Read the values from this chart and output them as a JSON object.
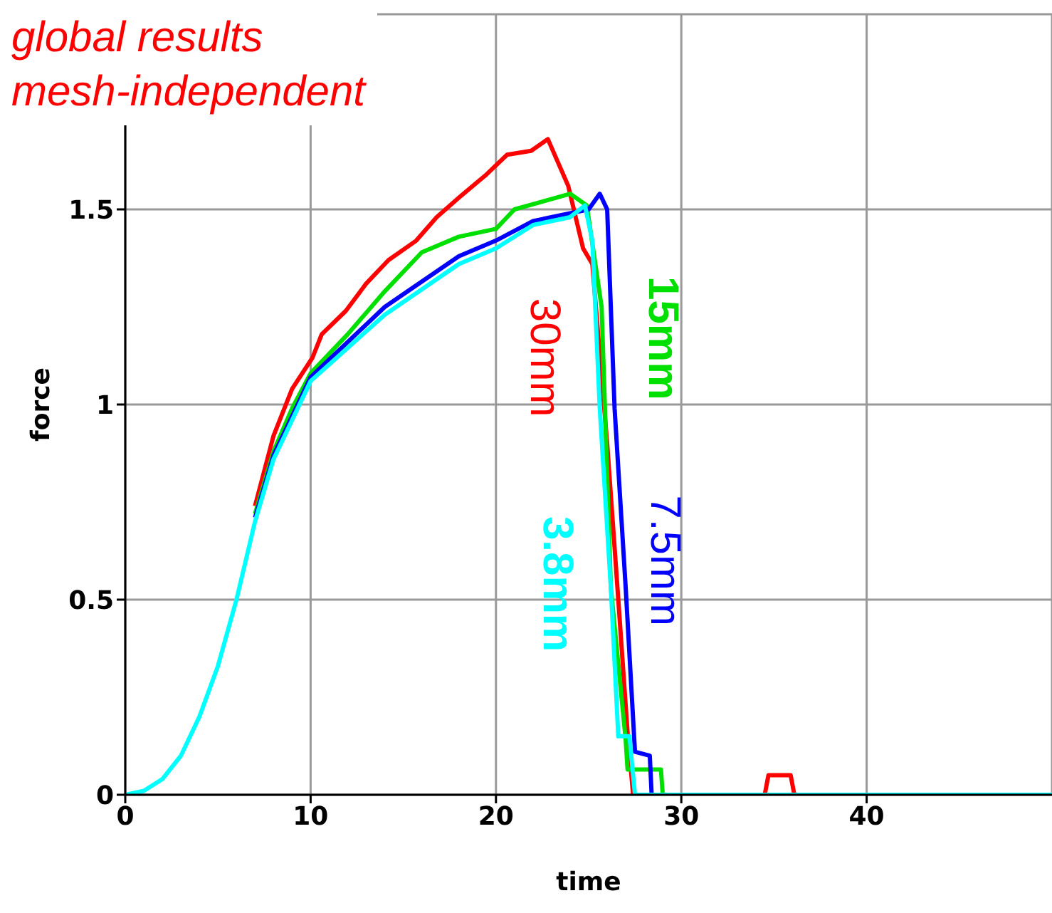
{
  "chart_data": {
    "type": "line",
    "title": "global results",
    "subtitle": "mesh-independent",
    "xlabel": "time",
    "ylabel": "force",
    "xlim": [
      0,
      50
    ],
    "ylim": [
      0,
      2
    ],
    "xticks": [
      0,
      10,
      20,
      30,
      40
    ],
    "yticks": [
      0,
      0.5,
      1,
      1.5
    ],
    "grid": true,
    "legend": false,
    "marker": "none",
    "line_style": "solid",
    "series": [
      {
        "name": "30mm",
        "color": "#ff0000",
        "x": [
          7,
          8,
          9,
          10.1,
          10.6,
          11.9,
          13,
          14.2,
          15.7,
          16.8,
          18,
          19.5,
          20.6,
          21.9,
          22.8,
          23.9,
          24.7,
          25.2,
          26,
          26.6,
          27.1,
          27.4,
          34.5,
          34.7,
          35.9,
          36.1,
          50
        ],
        "values": [
          0.74,
          0.92,
          1.04,
          1.12,
          1.18,
          1.24,
          1.31,
          1.37,
          1.42,
          1.48,
          1.53,
          1.59,
          1.64,
          1.65,
          1.68,
          1.56,
          1.4,
          1.36,
          0.9,
          0.5,
          0.16,
          0,
          0,
          0.05,
          0.05,
          0,
          0
        ]
      },
      {
        "name": "15mm",
        "color": "#00e000",
        "x": [
          7,
          8,
          9,
          10,
          12,
          14,
          16,
          18,
          20,
          21,
          22.5,
          24,
          24.9,
          25.7,
          26.2,
          27,
          27.1,
          28.9,
          29,
          50
        ],
        "values": [
          0.72,
          0.88,
          0.99,
          1.08,
          1.18,
          1.29,
          1.39,
          1.43,
          1.45,
          1.5,
          1.52,
          1.54,
          1.51,
          1.25,
          0.53,
          0.14,
          0.065,
          0.065,
          0,
          0
        ]
      },
      {
        "name": "7.5mm",
        "color": "#0000ff",
        "x": [
          7,
          8,
          9,
          10,
          14,
          18,
          20,
          22,
          24,
          25,
          25.6,
          26,
          26.4,
          27,
          27.5,
          28.3,
          28.4,
          50
        ],
        "values": [
          0.71,
          0.87,
          0.97,
          1.07,
          1.25,
          1.38,
          1.42,
          1.47,
          1.49,
          1.5,
          1.54,
          1.5,
          0.99,
          0.53,
          0.11,
          0.1,
          0,
          0
        ]
      },
      {
        "name": "3.8mm",
        "color": "#00ffff",
        "x": [
          0,
          1,
          2,
          3,
          4,
          5,
          6,
          7,
          8,
          9,
          10,
          14,
          18,
          20,
          22,
          24,
          24.8,
          25.2,
          25.6,
          26.2,
          26.6,
          27.2,
          27.5,
          50
        ],
        "values": [
          0,
          0.01,
          0.04,
          0.1,
          0.2,
          0.33,
          0.5,
          0.7,
          0.86,
          0.96,
          1.06,
          1.23,
          1.36,
          1.4,
          1.46,
          1.48,
          1.51,
          1.42,
          0.99,
          0.53,
          0.15,
          0.15,
          0,
          0
        ]
      }
    ]
  }
}
